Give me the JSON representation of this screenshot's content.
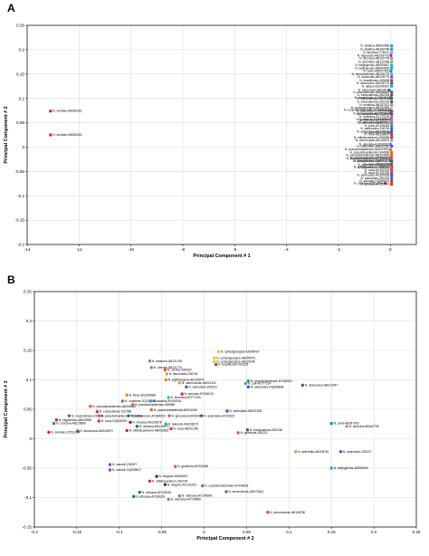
{
  "chart_data": [
    {
      "panel": "A",
      "type": "scatter",
      "xlabel": "Principal Component # 1",
      "ylabel": "Principal Component # 2",
      "xlim": [
        -14,
        1
      ],
      "ylim": [
        -0.2,
        0.25
      ],
      "x_ticks": [
        -14,
        -12,
        -10,
        -8,
        -6,
        -4,
        -2,
        0
      ],
      "y_ticks": [
        -0.2,
        -0.15,
        -0.1,
        -0.05,
        0,
        0.05,
        0.1,
        0.15,
        0.2,
        0.25
      ],
      "grid": true,
      "points": [
        {
          "label": "N. seriolae-AB060281",
          "x": -13.1,
          "y": 0.074,
          "color": "#e8262b"
        },
        {
          "label": "N. seriolae-AB060282",
          "x": -13.1,
          "y": 0.025,
          "color": "#e8262b"
        },
        {
          "label": "N. asiatica-AB092566",
          "x": 0.05,
          "y": 0.208,
          "color": "#1fa5d8"
        },
        {
          "label": "N. asiatica-AB162796",
          "x": 0.05,
          "y": 0.201,
          "color": "#1fa5d8"
        },
        {
          "label": "N. farcinica-Y18141",
          "x": 0.05,
          "y": 0.194,
          "color": "#e86ec5"
        },
        {
          "label": "N. higoensis-AB108776",
          "x": 0.02,
          "y": 0.188,
          "color": "#2a6fce"
        },
        {
          "label": "N. farcinica-AB162795",
          "x": 0.05,
          "y": 0.182,
          "color": "#e86ec5"
        },
        {
          "label": "N. arthritidis-AB312948",
          "x": 0.05,
          "y": 0.175,
          "color": "#7cc242"
        },
        {
          "label": "N. beijingensis-AB094647",
          "x": 0.05,
          "y": 0.168,
          "color": "#1fa5d8"
        },
        {
          "label": "N. beijingensis-AB094656",
          "x": 0.05,
          "y": 0.162,
          "color": "#1fa5d8"
        },
        {
          "label": "N. puris-AB097453",
          "x": 0.02,
          "y": 0.156,
          "color": "#0a9e91"
        },
        {
          "label": "N. shimofusensis-AB108775",
          "x": 0.05,
          "y": 0.15,
          "color": "#44c1c9"
        },
        {
          "label": "N. araoensis-AB108779",
          "x": 0.05,
          "y": 0.144,
          "color": "#8a4fc4"
        },
        {
          "label": "N. brasiliensis-X80608",
          "x": 0.05,
          "y": 0.137,
          "color": "#c33a3a"
        },
        {
          "label": "N. abscessus-AB108779",
          "x": 0.05,
          "y": 0.131,
          "color": "#2b62c4"
        },
        {
          "label": "N. altiaeu-EU099357",
          "x": 0.05,
          "y": 0.125,
          "color": "#24b3b3"
        },
        {
          "label": "N. asteroides-Z82220",
          "x": -0.05,
          "y": 0.117,
          "color": "#3a5bd0"
        },
        {
          "label": "N. transvalensis-AB068844",
          "x": 0.05,
          "y": 0.113,
          "color": "#5a5a5a"
        },
        {
          "label": "N. transvalensis-Z82235",
          "x": 0.05,
          "y": 0.107,
          "color": "#5a5a5a"
        },
        {
          "label": "N. tenerifensis-AJ556157",
          "x": 0.0,
          "y": 0.101,
          "color": "#1a7d4e"
        },
        {
          "label": "N. transvalensis-X80598",
          "x": 0.05,
          "y": 0.1,
          "color": "#5a5a5a"
        },
        {
          "label": "N. transvalensis-Z82233",
          "x": 0.05,
          "y": 0.093,
          "color": "#5a5a5a"
        },
        {
          "label": "N. exalbida-AB187521",
          "x": 0.05,
          "y": 0.087,
          "color": "#b37fd9"
        },
        {
          "label": "N. cyriacigeorgica-AB094965",
          "x": 0.05,
          "y": 0.081,
          "color": "#f0c419"
        },
        {
          "label": "N. corynebacterioides-AY438618",
          "x": -0.02,
          "y": 0.076,
          "color": "#777777"
        },
        {
          "label": "N. asteroides-DQ659896",
          "x": 0.05,
          "y": 0.074,
          "color": "#3a5bd0"
        },
        {
          "label": "N. armeniensis-AB275164",
          "x": 0.0,
          "y": 0.069,
          "color": "#8f5a9b"
        },
        {
          "label": "N. transvalensis-X83540",
          "x": 0.05,
          "y": 0.068,
          "color": "#5a5a5a"
        },
        {
          "label": "N. veterana-AY179109",
          "x": 0.05,
          "y": 0.062,
          "color": "#9b6ed0"
        },
        {
          "label": "N. globerula-DQ525590",
          "x": 0.0,
          "y": 0.057,
          "color": "#d65c38"
        },
        {
          "label": "N. veterana-AF430054",
          "x": 0.05,
          "y": 0.056,
          "color": "#9b6ed0"
        },
        {
          "label": "N. salmonicida-Z46751",
          "x": 0.0,
          "y": 0.05,
          "color": "#e2a13b"
        },
        {
          "label": "N. veterana-AB201301",
          "x": 0.05,
          "y": 0.05,
          "color": "#9b6ed0"
        },
        {
          "label": "N. puris-AF430049",
          "x": 0.05,
          "y": 0.044,
          "color": "#0a9e91"
        },
        {
          "label": "N. asteroides-Z46752",
          "x": 0.05,
          "y": 0.038,
          "color": "#3a5bd0"
        },
        {
          "label": "N. soli-AF277224",
          "x": 0.0,
          "y": 0.03,
          "color": "#39b54a"
        },
        {
          "label": "N. asteroides-AB125676",
          "x": 0.05,
          "y": 0.032,
          "color": "#3a5bd0"
        },
        {
          "label": "N. nova-AB126875",
          "x": 0.05,
          "y": 0.026,
          "color": "#d12a7d"
        },
        {
          "label": "N. otitidiscaviarum-X80596",
          "x": 0.05,
          "y": 0.02,
          "color": "#cc2936"
        },
        {
          "label": "N. vermiculata-AB126873",
          "x": 0.05,
          "y": 0.014,
          "color": "#66c2a5"
        },
        {
          "label": "N. ignorata-AJ303008",
          "x": 0.0,
          "y": 0.006,
          "color": "#a45ee5"
        },
        {
          "label": "N. asteroides-AB092560",
          "x": 0.05,
          "y": 0.002,
          "color": "#3a5bd0"
        },
        {
          "label": "N. pseudobrasiliensis-AB201305",
          "x": 0.0,
          "y": -0.005,
          "color": "#f15a24"
        },
        {
          "label": "N. pseudobrasiliensis-X84958",
          "x": 0.05,
          "y": -0.011,
          "color": "#f15a24"
        },
        {
          "label": "N. pseudobrasiliensis-AB304654",
          "x": 0.05,
          "y": -0.017,
          "color": "#f15a24"
        },
        {
          "label": "N. pseudovaccinii-AF430046",
          "x": 0.0,
          "y": -0.022,
          "color": "#8e44ad"
        },
        {
          "label": "N. pseudobrasiliensis-AF430043",
          "x": 0.05,
          "y": -0.023,
          "color": "#f15a24"
        },
        {
          "label": "N. jiangxiensis-DQ840027",
          "x": 0.0,
          "y": -0.028,
          "color": "#2e86c1"
        },
        {
          "label": "N. transvalensis-AB201301",
          "x": 0.05,
          "y": -0.029,
          "color": "#5a5a5a"
        },
        {
          "label": "N. jejuensis-AY964666",
          "x": 0.0,
          "y": -0.036,
          "color": "#17a589"
        },
        {
          "label": "N. nova-AB162798",
          "x": 0.05,
          "y": -0.035,
          "color": "#d12a7d"
        },
        {
          "label": "N. otitidiscaviarum-X80596",
          "x": 0.05,
          "y": -0.041,
          "color": "#cc2936"
        },
        {
          "label": "N. uniformis-AF430044",
          "x": 0.0,
          "y": -0.042,
          "color": "#b7950b"
        },
        {
          "label": "N. nova-AF430032",
          "x": 0.05,
          "y": -0.047,
          "color": "#d12a7d"
        },
        {
          "label": "N. nova-AY191253",
          "x": 0.05,
          "y": -0.053,
          "color": "#d12a7d"
        },
        {
          "label": "N. asteroides-AF309936",
          "x": 0.05,
          "y": -0.058,
          "color": "#3a5bd0"
        },
        {
          "label": "N. asteroides-Z82232",
          "x": 0.05,
          "y": -0.064,
          "color": "#3a5bd0"
        },
        {
          "label": "N. seriolae-DQ659915",
          "x": 0.05,
          "y": -0.07,
          "color": "#e8262b"
        },
        {
          "label": "N. seriolae-ST512204",
          "x": -0.2,
          "y": -0.074,
          "color": "#e8262b"
        },
        {
          "label": "N. seriolae-AY157474",
          "x": 0.05,
          "y": -0.076,
          "color": "#e8262b"
        }
      ]
    },
    {
      "panel": "B",
      "type": "scatter",
      "xlabel": "Principal Component # 2",
      "ylabel": "Principal Component # 3",
      "xlim": [
        -0.2,
        0.25
      ],
      "ylim": [
        -0.15,
        0.25
      ],
      "x_ticks": [
        -0.2,
        -0.15,
        -0.1,
        -0.05,
        0,
        0.05,
        0.1,
        0.15,
        0.2,
        0.25
      ],
      "y_ticks": [
        -0.15,
        -0.1,
        -0.05,
        0,
        0.05,
        0.1,
        0.15,
        0.2,
        0.25
      ],
      "grid": true,
      "points": [
        {
          "label": "N. cyriacigeorgica-AJ508414",
          "x": 0.017,
          "y": 0.148,
          "color": "#f0c419"
        },
        {
          "label": "N. cyriacigeorgica-AB094579",
          "x": 0.012,
          "y": 0.137,
          "color": "#f0c419"
        },
        {
          "label": "N. cyriacigeorgica-AB115946",
          "x": 0.012,
          "y": 0.131,
          "color": "#f0c419"
        },
        {
          "label": "N. brasiliensis-X53205",
          "x": 0.014,
          "y": 0.126,
          "color": "#c33a3a"
        },
        {
          "label": "N. testacea-AB121769",
          "x": -0.064,
          "y": 0.132,
          "color": "#7f8c8d"
        },
        {
          "label": "N. sienata-AB121770",
          "x": -0.062,
          "y": 0.121,
          "color": "#7f8c8d"
        },
        {
          "label": "N. carnea-X80602",
          "x": -0.046,
          "y": 0.117,
          "color": "#e74c3c"
        },
        {
          "label": "N. flavorosea-Z46754",
          "x": -0.044,
          "y": 0.11,
          "color": "#f39c12"
        },
        {
          "label": "N. pigrifrangens-AF219974",
          "x": -0.045,
          "y": 0.1,
          "color": "#e67e22"
        },
        {
          "label": "N. salmonicida-AB021322",
          "x": -0.029,
          "y": 0.095,
          "color": "#e2a13b"
        },
        {
          "label": "N. asteroides-Z82231",
          "x": -0.021,
          "y": 0.088,
          "color": "#3a5bd0"
        },
        {
          "label": "N. neocaledoniensis-AY282603",
          "x": 0.052,
          "y": 0.098,
          "color": "#16a085"
        },
        {
          "label": "N. soli-AF277224",
          "x": 0.049,
          "y": 0.094,
          "color": "#39b54a"
        },
        {
          "label": "N. asteroides-DQ659898",
          "x": 0.052,
          "y": 0.088,
          "color": "#3a5bd0"
        },
        {
          "label": "N. abscessus-AB212947",
          "x": 0.116,
          "y": 0.091,
          "color": "#2b62c4"
        },
        {
          "label": "N. kinas-DQ235688",
          "x": -0.091,
          "y": 0.074,
          "color": "#ff7f0e"
        },
        {
          "label": "N. seriolae-AF430015",
          "x": -0.026,
          "y": 0.076,
          "color": "#e8262b"
        },
        {
          "label": "N. fluminea-AF277204",
          "x": -0.042,
          "y": 0.07,
          "color": "#2ecc71"
        },
        {
          "label": "N. coubleae-DQ235686",
          "x": -0.096,
          "y": 0.064,
          "color": "#9b59b6"
        },
        {
          "label": "N. asiatica-AF430051",
          "x": -0.063,
          "y": 0.064,
          "color": "#1fa5d8"
        },
        {
          "label": "N. pseudobrasiliensis-AB056882",
          "x": -0.134,
          "y": 0.055,
          "color": "#f15a24"
        },
        {
          "label": "N. pseudobrasiliensis-X84958",
          "x": -0.084,
          "y": 0.058,
          "color": "#f15a24"
        },
        {
          "label": "N. crassostreae-Z37989",
          "x": -0.126,
          "y": 0.046,
          "color": "#8e44ad"
        },
        {
          "label": "N. pseudobrasiliensis-AB201305",
          "x": -0.062,
          "y": 0.049,
          "color": "#f15a24"
        },
        {
          "label": "N. asteroides-AB201306",
          "x": 0.027,
          "y": 0.047,
          "color": "#3a5bd0"
        },
        {
          "label": "N. asteroides-AY33315",
          "x": -0.003,
          "y": 0.039,
          "color": "#3a5bd0"
        },
        {
          "label": "N. crassostreae-Z37989",
          "x": -0.159,
          "y": 0.039,
          "color": "#8e44ad"
        },
        {
          "label": "N. pseudobrasiliensis-Y964666",
          "x": -0.124,
          "y": 0.039,
          "color": "#f15a24"
        },
        {
          "label": "N. acidovorans-AY684652",
          "x": -0.089,
          "y": 0.039,
          "color": "#2471a3"
        },
        {
          "label": "N. ignorata-AJ303008",
          "x": -0.041,
          "y": 0.039,
          "color": "#a45ee5"
        },
        {
          "label": "N. niigatensis-AB092585",
          "x": -0.174,
          "y": 0.032,
          "color": "#c0392b"
        },
        {
          "label": "N. concava-AB126680",
          "x": -0.177,
          "y": 0.026,
          "color": "#2e86c1"
        },
        {
          "label": "N. nova-DQ840029",
          "x": -0.124,
          "y": 0.03,
          "color": "#d12a7d"
        },
        {
          "label": "N. vinacea-AB126878",
          "x": -0.087,
          "y": 0.028,
          "color": "#8b1a4a"
        },
        {
          "label": "N. takensis-AB126879",
          "x": -0.045,
          "y": 0.025,
          "color": "#1abc9c"
        },
        {
          "label": "N. africana-AB126872",
          "x": -0.079,
          "y": 0.021,
          "color": "#117a65"
        },
        {
          "label": "N. puris-AB097453",
          "x": 0.15,
          "y": 0.026,
          "color": "#0a9e91"
        },
        {
          "label": "N. farcinica-AB162795",
          "x": 0.168,
          "y": 0.021,
          "color": "#e86ec5"
        },
        {
          "label": "N. seriolae-ST512204",
          "x": -0.183,
          "y": 0.011,
          "color": "#e8262b"
        },
        {
          "label": "N. abscessus-AB126879",
          "x": -0.149,
          "y": 0.013,
          "color": "#2b62c4"
        },
        {
          "label": "N. otitidiscaviarum-AB092563",
          "x": -0.091,
          "y": 0.014,
          "color": "#cc2936"
        },
        {
          "label": "N. nova-AB201260",
          "x": -0.039,
          "y": 0.017,
          "color": "#d12a7d"
        },
        {
          "label": "N. transvalensis-Z82238",
          "x": 0.051,
          "y": 0.015,
          "color": "#5a5a5a"
        },
        {
          "label": "N. globerula-Z82232",
          "x": 0.04,
          "y": 0.01,
          "color": "#d65c38"
        },
        {
          "label": "N. arthritidis-AB108781",
          "x": 0.108,
          "y": -0.022,
          "color": "#7cc242"
        },
        {
          "label": "N. asteroides-Z82227",
          "x": 0.161,
          "y": -0.022,
          "color": "#3a5bd0"
        },
        {
          "label": "N. vaccinii-Z36927",
          "x": -0.111,
          "y": -0.044,
          "color": "#8e44ad"
        },
        {
          "label": "N. globerula-AF430065",
          "x": -0.034,
          "y": -0.047,
          "color": "#d65c38"
        },
        {
          "label": "N. vaccinii-DQ639817",
          "x": -0.111,
          "y": -0.053,
          "color": "#8e44ad"
        },
        {
          "label": "N. beijingensis-AB094650",
          "x": 0.15,
          "y": -0.05,
          "color": "#1fa5d8"
        },
        {
          "label": "N. elegans-AB254057",
          "x": -0.056,
          "y": -0.064,
          "color": "#2c3e50"
        },
        {
          "label": "N. otitidiscaviarum-Z82234",
          "x": -0.064,
          "y": -0.072,
          "color": "#cc2936"
        },
        {
          "label": "N. elegans-AY191253",
          "x": -0.046,
          "y": -0.078,
          "color": "#2c3e50"
        },
        {
          "label": "N. corynebacterioides-AY438618",
          "x": -0.002,
          "y": -0.08,
          "color": "#777777"
        },
        {
          "label": "N. africana-AF430035",
          "x": -0.076,
          "y": -0.091,
          "color": "#117a65"
        },
        {
          "label": "N. veterana-AY149099",
          "x": -0.029,
          "y": -0.097,
          "color": "#9b6ed0"
        },
        {
          "label": "N. armeniensis-AB275164",
          "x": 0.026,
          "y": -0.09,
          "color": "#8f5a9b"
        },
        {
          "label": "N. africana-AY169291",
          "x": -0.083,
          "y": -0.098,
          "color": "#117a65"
        },
        {
          "label": "N. veterana-AY149599",
          "x": -0.042,
          "y": -0.103,
          "color": "#9b6ed0"
        },
        {
          "label": "N. pneumoniae-AB108780",
          "x": 0.075,
          "y": -0.125,
          "color": "#e74c3c"
        }
      ]
    }
  ]
}
